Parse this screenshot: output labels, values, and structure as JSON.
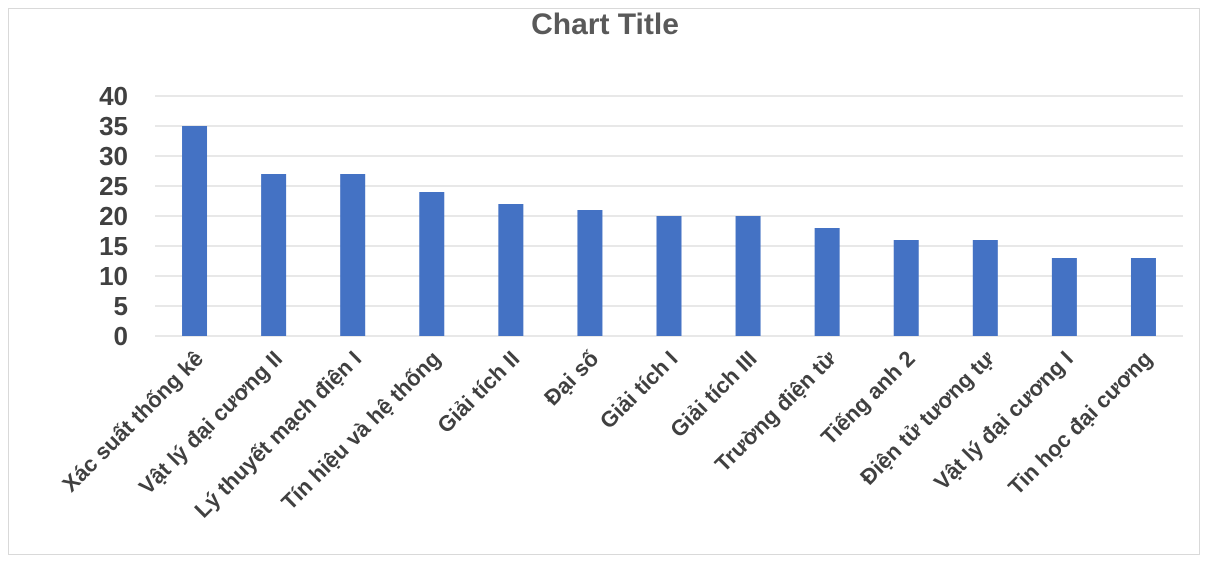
{
  "chart_data": {
    "type": "bar",
    "title": "Chart Title",
    "categories": [
      "Xác suất thống kê",
      "Vật lý đại cương II",
      "Lý thuyết mạch điện I",
      "Tín hiệu và hệ thống",
      "Giải tích II",
      "Đại số",
      "Giải tích I",
      "Giải tích III",
      "Trường điện từ",
      "Tiếng anh 2",
      "Điện tử tương tự",
      "Vật lý đại cương I",
      "Tin học đại cương"
    ],
    "values": [
      35,
      27,
      27,
      24,
      22,
      21,
      20,
      20,
      18,
      16,
      16,
      13,
      13
    ],
    "ylim": [
      0,
      40
    ],
    "yticks": [
      0,
      5,
      10,
      15,
      20,
      25,
      30,
      35,
      40
    ],
    "grid": true,
    "legend": "none",
    "bar_color": "#4472C4"
  }
}
